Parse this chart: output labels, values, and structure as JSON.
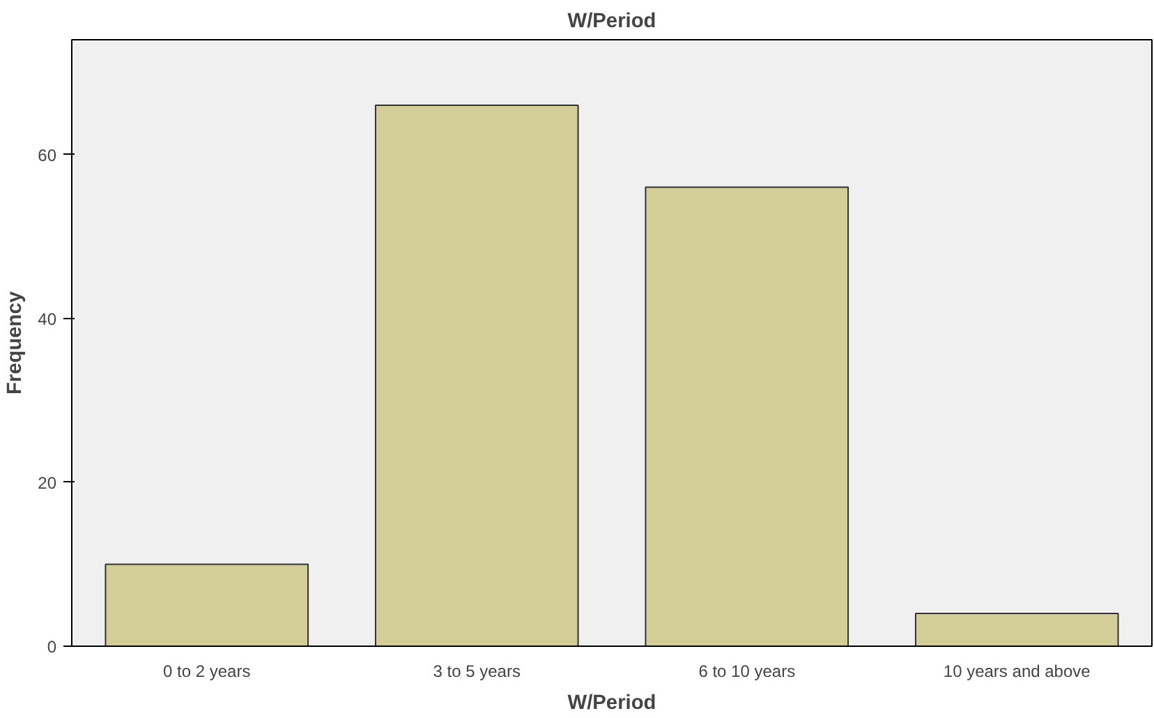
{
  "chart_data": {
    "type": "bar",
    "title": "W/Period",
    "xlabel": "W/Period",
    "ylabel": "Frequency",
    "categories": [
      "0 to 2 years",
      "3 to 5 years",
      "6 to 10 years",
      "10 years and above"
    ],
    "values": [
      10,
      66,
      56,
      4
    ],
    "color": "#d3ce97",
    "ylim": [
      0,
      74
    ],
    "yticks": [
      0,
      20,
      40,
      60
    ],
    "grid": false
  }
}
